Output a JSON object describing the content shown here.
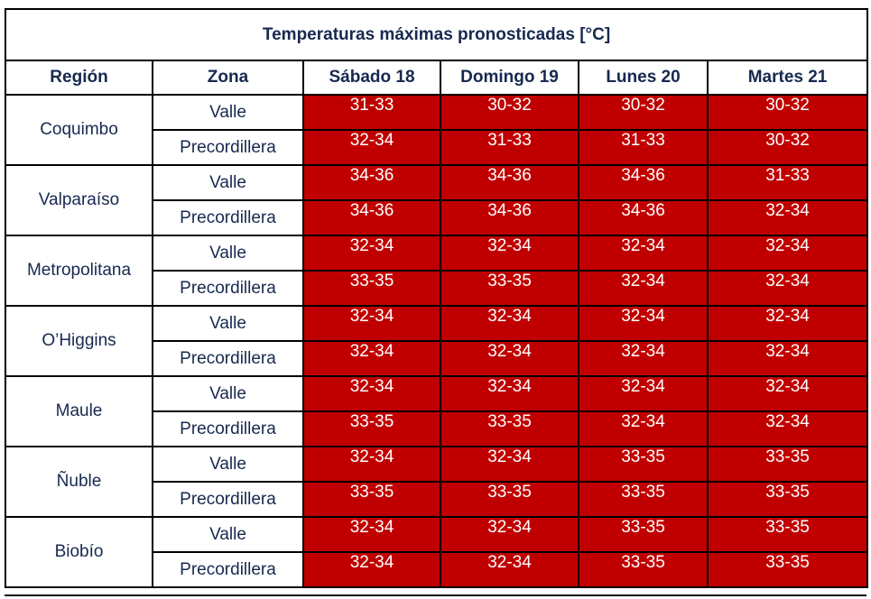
{
  "title": "Temperaturas máximas pronosticadas [°C]",
  "headers": [
    "Región",
    "Zona",
    "Sábado 18",
    "Domingo 19",
    "Lunes 20",
    "Martes 21"
  ],
  "colors": {
    "header_text": "#17294f",
    "cell_fill": "#c00000",
    "cell_text": "#ffffff",
    "border": "#000000"
  },
  "regions": [
    {
      "name": "Coquimbo",
      "zones": [
        {
          "zone": "Valle",
          "temps": [
            "31-33",
            "30-32",
            "30-32",
            "30-32"
          ]
        },
        {
          "zone": "Precordillera",
          "temps": [
            "32-34",
            "31-33",
            "31-33",
            "30-32"
          ]
        }
      ]
    },
    {
      "name": "Valparaíso",
      "zones": [
        {
          "zone": "Valle",
          "temps": [
            "34-36",
            "34-36",
            "34-36",
            "31-33"
          ]
        },
        {
          "zone": "Precordillera",
          "temps": [
            "34-36",
            "34-36",
            "34-36",
            "32-34"
          ]
        }
      ]
    },
    {
      "name": "Metropolitana",
      "zones": [
        {
          "zone": "Valle",
          "temps": [
            "32-34",
            "32-34",
            "32-34",
            "32-34"
          ]
        },
        {
          "zone": "Precordillera",
          "temps": [
            "33-35",
            "33-35",
            "32-34",
            "32-34"
          ]
        }
      ]
    },
    {
      "name": "O’Higgins",
      "zones": [
        {
          "zone": "Valle",
          "temps": [
            "32-34",
            "32-34",
            "32-34",
            "32-34"
          ]
        },
        {
          "zone": "Precordillera",
          "temps": [
            "32-34",
            "32-34",
            "32-34",
            "32-34"
          ]
        }
      ]
    },
    {
      "name": "Maule",
      "zones": [
        {
          "zone": "Valle",
          "temps": [
            "32-34",
            "32-34",
            "32-34",
            "32-34"
          ]
        },
        {
          "zone": "Precordillera",
          "temps": [
            "33-35",
            "33-35",
            "32-34",
            "32-34"
          ]
        }
      ]
    },
    {
      "name": "Ñuble",
      "zones": [
        {
          "zone": "Valle",
          "temps": [
            "32-34",
            "32-34",
            "33-35",
            "33-35"
          ]
        },
        {
          "zone": "Precordillera",
          "temps": [
            "33-35",
            "33-35",
            "33-35",
            "33-35"
          ]
        }
      ]
    },
    {
      "name": "Biobío",
      "zones": [
        {
          "zone": "Valle",
          "temps": [
            "32-34",
            "32-34",
            "33-35",
            "33-35"
          ]
        },
        {
          "zone": "Precordillera",
          "temps": [
            "32-34",
            "32-34",
            "33-35",
            "33-35"
          ]
        }
      ]
    }
  ]
}
